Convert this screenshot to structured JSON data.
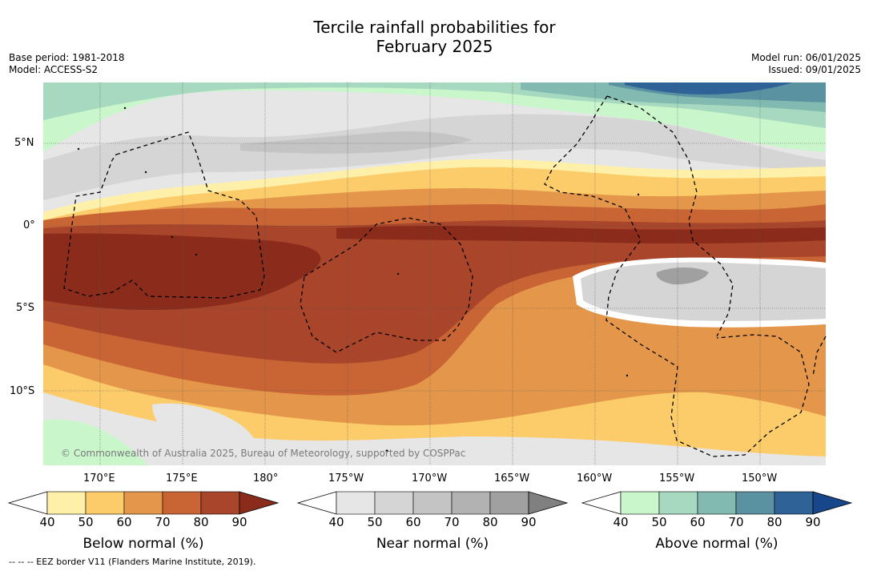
{
  "title": {
    "line1": "Tercile rainfall probabilities for",
    "line2": "February 2025"
  },
  "meta": {
    "base_period": "Base period: 1981-2018",
    "model": "Model: ACCESS-S2",
    "model_run": "Model run: 06/01/2025",
    "issued": "Issued: 09/01/2025"
  },
  "map": {
    "lat_labels": [
      "5°N",
      "0°",
      "5°S",
      "10°S"
    ],
    "lon_labels": [
      "170°E",
      "175°E",
      "180°",
      "175°W",
      "170°W",
      "165°W",
      "160°W",
      "155°W",
      "150°W"
    ],
    "copyright": "© Commonwealth of Australia 2025, Bureau of Meteorology, supported by COSPPac",
    "colors": {
      "land_bg": "#ffffff",
      "gridline": "#555555",
      "eez_border": "#000000"
    }
  },
  "colorbars": [
    {
      "caption": "Below normal (%)",
      "ticks": [
        "40",
        "50",
        "60",
        "70",
        "80",
        "90"
      ],
      "colors": [
        "#fef0a8",
        "#fdcc6a",
        "#e4974a",
        "#c96535",
        "#a8452a",
        "#8a2b1c"
      ]
    },
    {
      "caption": "Near normal (%)",
      "ticks": [
        "40",
        "50",
        "60",
        "70",
        "80",
        "90"
      ],
      "colors": [
        "#e6e6e6",
        "#d5d5d5",
        "#c4c4c4",
        "#b2b2b2",
        "#a0a0a0",
        "#808080"
      ]
    },
    {
      "caption": "Above normal (%)",
      "ticks": [
        "40",
        "50",
        "60",
        "70",
        "80",
        "90"
      ],
      "colors": [
        "#caf6cc",
        "#a6d9c0",
        "#82b9b0",
        "#5a92a2",
        "#2f6397",
        "#17468a"
      ]
    }
  ],
  "footnote": "--  --  -- EEZ border V11 (Flanders Marine Institute, 2019)."
}
